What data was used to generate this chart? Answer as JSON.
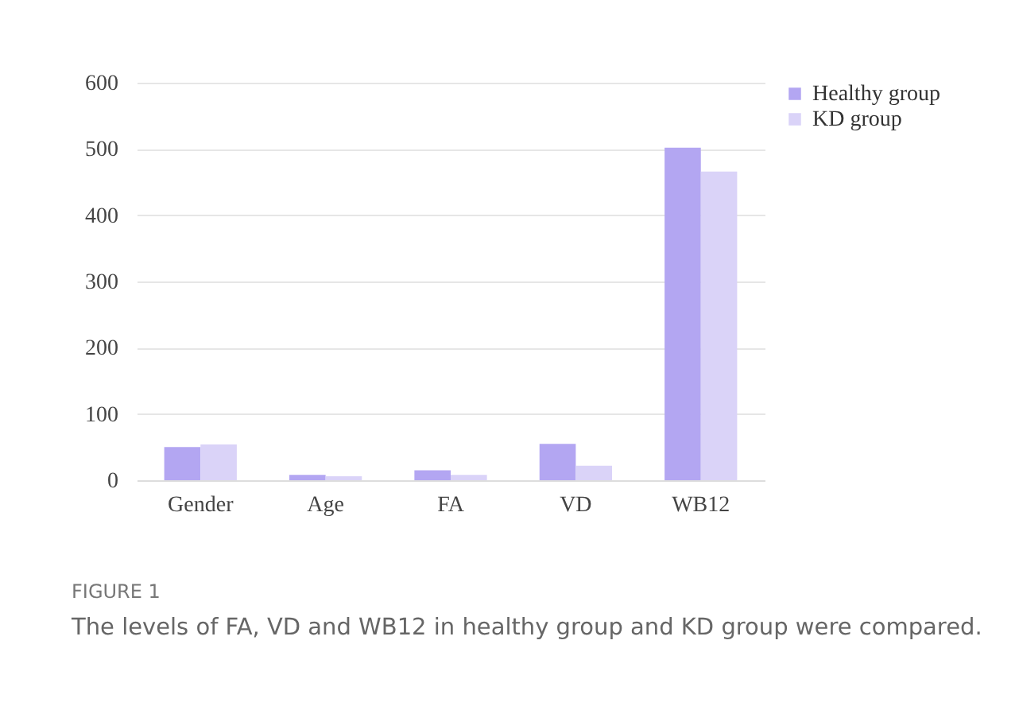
{
  "chart_data": {
    "type": "bar",
    "title": "FIGURE 1",
    "annotations": [
      "The levels of FA, VD and WB12 in healthy group and KD group were compared."
    ],
    "categories": [
      "Gender",
      "Age",
      "FA",
      "VD",
      "WB12"
    ],
    "series": [
      {
        "name": "Healthy group",
        "color": "#b3a6f2",
        "values": [
          50,
          8,
          15,
          55,
          502
        ]
      },
      {
        "name": "KD group",
        "color": "#dad3f8",
        "values": [
          54,
          6,
          8,
          22,
          466
        ]
      }
    ],
    "ylim": [
      0,
      600
    ],
    "yticks": [
      0,
      100,
      200,
      300,
      400,
      500,
      600
    ],
    "grid": "y",
    "legend": "right"
  }
}
